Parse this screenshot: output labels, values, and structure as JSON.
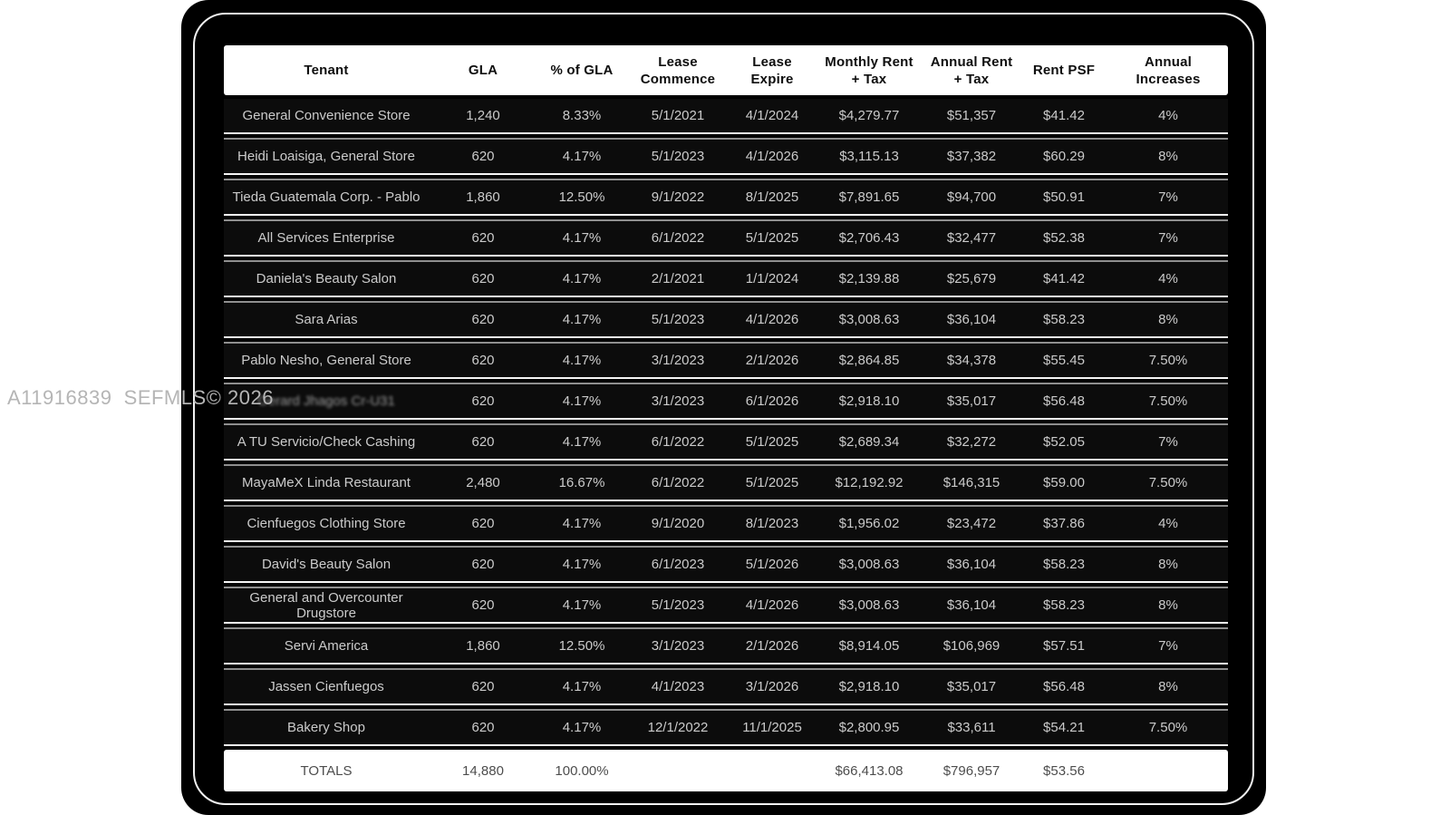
{
  "watermark": {
    "text": "A11916839  SEFMLS© 2026"
  },
  "colors": {
    "page_background": "#ffffff",
    "panel_background": "#000000",
    "header_background": "#ffffff",
    "header_text": "#0f0f0f",
    "row_background": "#0c0c0c",
    "row_text": "#cbcbcb",
    "separator_bright": "#f5f5f5",
    "separator_dim": "#8f8f8f",
    "totals_background": "#ffffff",
    "totals_text": "#4d4d4d",
    "watermark_text": "#b5b5b5"
  },
  "table": {
    "columns": [
      {
        "label": "Tenant"
      },
      {
        "label": "GLA"
      },
      {
        "label": "% of GLA"
      },
      {
        "label": "Lease\nCommence"
      },
      {
        "label": "Lease\nExpire"
      },
      {
        "label": "Monthly Rent\n+ Tax"
      },
      {
        "label": "Annual Rent\n+ Tax"
      },
      {
        "label": "Rent PSF"
      },
      {
        "label": "Annual\nIncreases"
      }
    ],
    "rows": [
      {
        "tenant": "General Convenience Store",
        "gla": "1,240",
        "pct_gla": "8.33%",
        "commence": "5/1/2021",
        "expire": "4/1/2024",
        "monthly": "$4,279.77",
        "annual": "$51,357",
        "psf": "$41.42",
        "increase": "4%"
      },
      {
        "tenant": "Heidi Loaisiga, General Store",
        "gla": "620",
        "pct_gla": "4.17%",
        "commence": "5/1/2023",
        "expire": "4/1/2026",
        "monthly": "$3,115.13",
        "annual": "$37,382",
        "psf": "$60.29",
        "increase": "8%"
      },
      {
        "tenant": "Tieda Guatemala Corp. - Pablo",
        "gla": "1,860",
        "pct_gla": "12.50%",
        "commence": "9/1/2022",
        "expire": "8/1/2025",
        "monthly": "$7,891.65",
        "annual": "$94,700",
        "psf": "$50.91",
        "increase": "7%"
      },
      {
        "tenant": "All Services Enterprise",
        "gla": "620",
        "pct_gla": "4.17%",
        "commence": "6/1/2022",
        "expire": "5/1/2025",
        "monthly": "$2,706.43",
        "annual": "$32,477",
        "psf": "$52.38",
        "increase": "7%"
      },
      {
        "tenant": "Daniela's Beauty Salon",
        "gla": "620",
        "pct_gla": "4.17%",
        "commence": "2/1/2021",
        "expire": "1/1/2024",
        "monthly": "$2,139.88",
        "annual": "$25,679",
        "psf": "$41.42",
        "increase": "4%"
      },
      {
        "tenant": "Sara Arias",
        "gla": "620",
        "pct_gla": "4.17%",
        "commence": "5/1/2023",
        "expire": "4/1/2026",
        "monthly": "$3,008.63",
        "annual": "$36,104",
        "psf": "$58.23",
        "increase": "8%"
      },
      {
        "tenant": "Pablo Nesho, General Store",
        "gla": "620",
        "pct_gla": "4.17%",
        "commence": "3/1/2023",
        "expire": "2/1/2026",
        "monthly": "$2,864.85",
        "annual": "$34,378",
        "psf": "$55.45",
        "increase": "7.50%"
      },
      {
        "tenant": "Gerard Jhagos Cr-U31",
        "gla": "620",
        "pct_gla": "4.17%",
        "commence": "3/1/2023",
        "expire": "6/1/2026",
        "monthly": "$2,918.10",
        "annual": "$35,017",
        "psf": "$56.48",
        "increase": "7.50%"
      },
      {
        "tenant": "A TU Servicio/Check Cashing",
        "gla": "620",
        "pct_gla": "4.17%",
        "commence": "6/1/2022",
        "expire": "5/1/2025",
        "monthly": "$2,689.34",
        "annual": "$32,272",
        "psf": "$52.05",
        "increase": "7%"
      },
      {
        "tenant": "MayaMeX Linda Restaurant",
        "gla": "2,480",
        "pct_gla": "16.67%",
        "commence": "6/1/2022",
        "expire": "5/1/2025",
        "monthly": "$12,192.92",
        "annual": "$146,315",
        "psf": "$59.00",
        "increase": "7.50%"
      },
      {
        "tenant": "Cienfuegos Clothing Store",
        "gla": "620",
        "pct_gla": "4.17%",
        "commence": "9/1/2020",
        "expire": "8/1/2023",
        "monthly": "$1,956.02",
        "annual": "$23,472",
        "psf": "$37.86",
        "increase": "4%"
      },
      {
        "tenant": "David's Beauty Salon",
        "gla": "620",
        "pct_gla": "4.17%",
        "commence": "6/1/2023",
        "expire": "5/1/2026",
        "monthly": "$3,008.63",
        "annual": "$36,104",
        "psf": "$58.23",
        "increase": "8%"
      },
      {
        "tenant": "General and Overcounter Drugstore",
        "gla": "620",
        "pct_gla": "4.17%",
        "commence": "5/1/2023",
        "expire": "4/1/2026",
        "monthly": "$3,008.63",
        "annual": "$36,104",
        "psf": "$58.23",
        "increase": "8%"
      },
      {
        "tenant": "Servi America",
        "gla": "1,860",
        "pct_gla": "12.50%",
        "commence": "3/1/2023",
        "expire": "2/1/2026",
        "monthly": "$8,914.05",
        "annual": "$106,969",
        "psf": "$57.51",
        "increase": "7%"
      },
      {
        "tenant": "Jassen Cienfuegos",
        "gla": "620",
        "pct_gla": "4.17%",
        "commence": "4/1/2023",
        "expire": "3/1/2026",
        "monthly": "$2,918.10",
        "annual": "$35,017",
        "psf": "$56.48",
        "increase": "8%"
      },
      {
        "tenant": "Bakery Shop",
        "gla": "620",
        "pct_gla": "4.17%",
        "commence": "12/1/2022",
        "expire": "11/1/2025",
        "monthly": "$2,800.95",
        "annual": "$33,611",
        "psf": "$54.21",
        "increase": "7.50%"
      }
    ],
    "obscured_row_index": 7,
    "totals": {
      "tenant": "TOTALS",
      "gla": "14,880",
      "pct_gla": "100.00%",
      "commence": "",
      "expire": "",
      "monthly": "$66,413.08",
      "annual": "$796,957",
      "psf": "$53.56",
      "increase": ""
    }
  }
}
